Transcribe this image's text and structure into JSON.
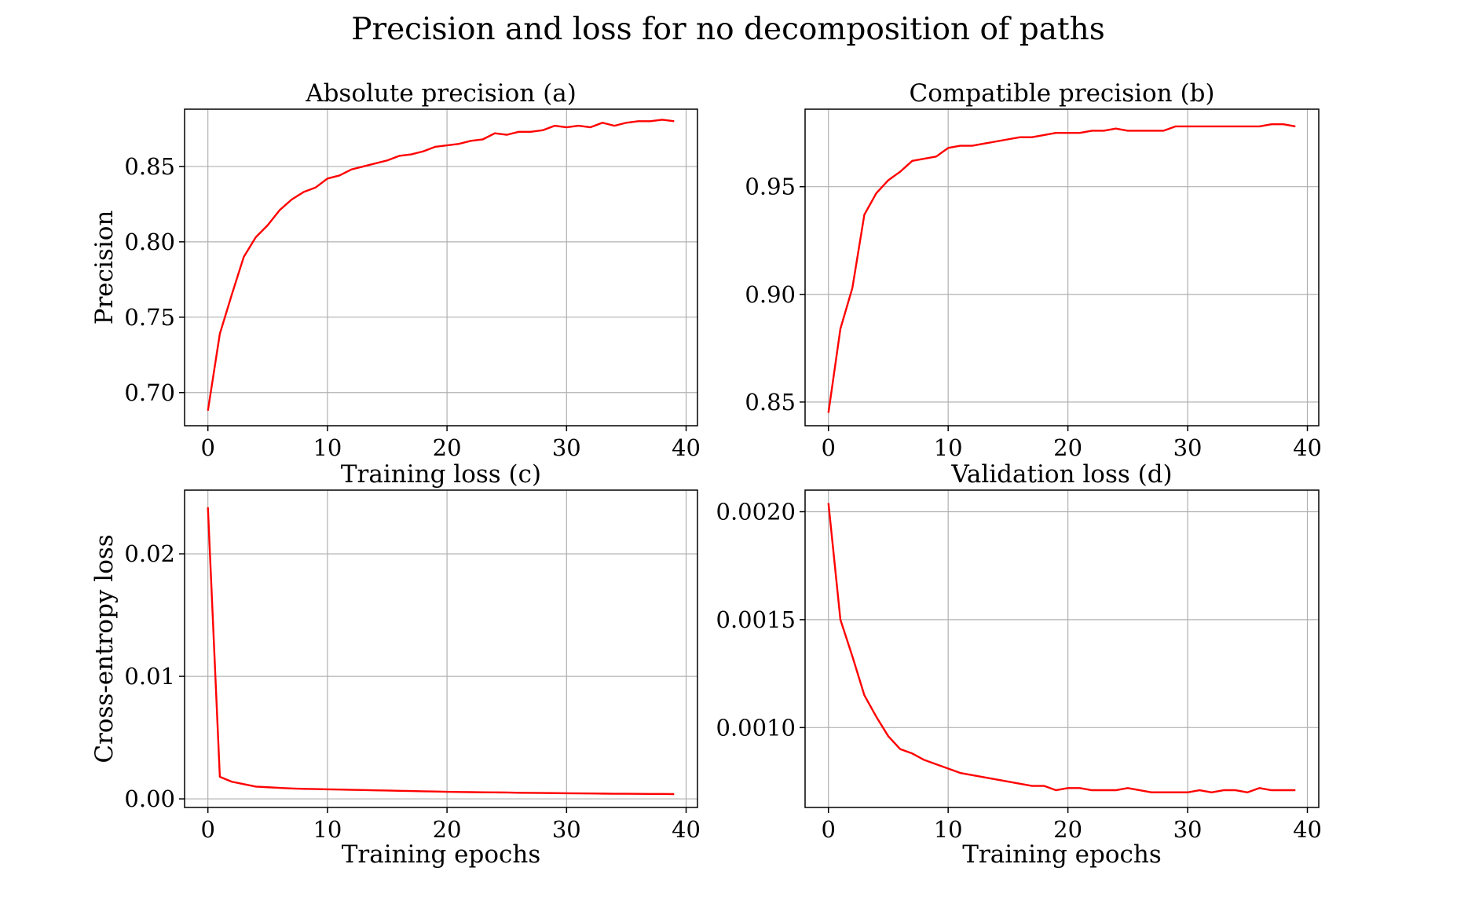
{
  "figure_title": "Precision and loss for no decomposition of paths",
  "colors": {
    "series": "#ff0000",
    "grid": "#b0b0b0",
    "frame": "#000000"
  },
  "chart_data": [
    {
      "type": "line",
      "title": "Absolute precision (a)",
      "xlabel": "",
      "ylabel": "Precision",
      "xlim": [
        -1.95,
        40.95
      ],
      "ylim": [
        0.678,
        0.888
      ],
      "xticks": [
        0,
        10,
        20,
        30,
        40
      ],
      "xtick_labels": [
        "0",
        "10",
        "20",
        "30",
        "40"
      ],
      "yticks": [
        0.7,
        0.75,
        0.8,
        0.85
      ],
      "ytick_labels": [
        "0.70",
        "0.75",
        "0.80",
        "0.85"
      ],
      "grid": true,
      "x": [
        0,
        1,
        2,
        3,
        4,
        5,
        6,
        7,
        8,
        9,
        10,
        11,
        12,
        13,
        14,
        15,
        16,
        17,
        18,
        19,
        20,
        21,
        22,
        23,
        24,
        25,
        26,
        27,
        28,
        29,
        30,
        31,
        32,
        33,
        34,
        35,
        36,
        37,
        38,
        39
      ],
      "series": [
        {
          "values": [
            0.688,
            0.739,
            0.765,
            0.79,
            0.803,
            0.811,
            0.821,
            0.828,
            0.833,
            0.836,
            0.842,
            0.844,
            0.848,
            0.85,
            0.852,
            0.854,
            0.857,
            0.858,
            0.86,
            0.863,
            0.864,
            0.865,
            0.867,
            0.868,
            0.872,
            0.871,
            0.873,
            0.873,
            0.874,
            0.877,
            0.876,
            0.877,
            0.876,
            0.879,
            0.877,
            0.879,
            0.88,
            0.88,
            0.881,
            0.88
          ]
        }
      ]
    },
    {
      "type": "line",
      "title": "Compatible precision (b)",
      "xlabel": "",
      "ylabel": "",
      "xlim": [
        -1.95,
        40.95
      ],
      "ylim": [
        0.839,
        0.986
      ],
      "xticks": [
        0,
        10,
        20,
        30,
        40
      ],
      "xtick_labels": [
        "0",
        "10",
        "20",
        "30",
        "40"
      ],
      "yticks": [
        0.85,
        0.9,
        0.95
      ],
      "ytick_labels": [
        "0.85",
        "0.90",
        "0.95"
      ],
      "grid": true,
      "x": [
        0,
        1,
        2,
        3,
        4,
        5,
        6,
        7,
        8,
        9,
        10,
        11,
        12,
        13,
        14,
        15,
        16,
        17,
        18,
        19,
        20,
        21,
        22,
        23,
        24,
        25,
        26,
        27,
        28,
        29,
        30,
        31,
        32,
        33,
        34,
        35,
        36,
        37,
        38,
        39
      ],
      "series": [
        {
          "values": [
            0.845,
            0.884,
            0.903,
            0.937,
            0.947,
            0.953,
            0.957,
            0.962,
            0.963,
            0.964,
            0.968,
            0.969,
            0.969,
            0.97,
            0.971,
            0.972,
            0.973,
            0.973,
            0.974,
            0.975,
            0.975,
            0.975,
            0.976,
            0.976,
            0.977,
            0.976,
            0.976,
            0.976,
            0.976,
            0.978,
            0.978,
            0.978,
            0.978,
            0.978,
            0.978,
            0.978,
            0.978,
            0.979,
            0.979,
            0.978
          ]
        }
      ]
    },
    {
      "type": "line",
      "title": "Training loss (c)",
      "xlabel": "Training epochs",
      "ylabel": "Cross-entropy loss",
      "xlim": [
        -1.95,
        40.95
      ],
      "ylim": [
        -0.0007,
        0.0252
      ],
      "xticks": [
        0,
        10,
        20,
        30,
        40
      ],
      "xtick_labels": [
        "0",
        "10",
        "20",
        "30",
        "40"
      ],
      "yticks": [
        0.0,
        0.01,
        0.02
      ],
      "ytick_labels": [
        "0.00",
        "0.01",
        "0.02"
      ],
      "grid": true,
      "x": [
        0,
        1,
        2,
        3,
        4,
        5,
        6,
        7,
        8,
        9,
        10,
        11,
        12,
        13,
        14,
        15,
        16,
        17,
        18,
        19,
        20,
        21,
        22,
        23,
        24,
        25,
        26,
        27,
        28,
        29,
        30,
        31,
        32,
        33,
        34,
        35,
        36,
        37,
        38,
        39
      ],
      "series": [
        {
          "values": [
            0.0238,
            0.0018,
            0.0014,
            0.0012,
            0.001,
            0.00095,
            0.0009,
            0.00085,
            0.00082,
            0.0008,
            0.00078,
            0.00076,
            0.00074,
            0.00072,
            0.0007,
            0.00068,
            0.00066,
            0.00064,
            0.00062,
            0.0006,
            0.00058,
            0.00056,
            0.00055,
            0.00054,
            0.00053,
            0.00052,
            0.0005,
            0.00049,
            0.00048,
            0.00047,
            0.00046,
            0.00045,
            0.00044,
            0.00043,
            0.00042,
            0.00042,
            0.00041,
            0.0004,
            0.0004,
            0.00039
          ]
        }
      ]
    },
    {
      "type": "line",
      "title": "Validation loss (d)",
      "xlabel": "Training epochs",
      "ylabel": "",
      "xlim": [
        -1.95,
        40.95
      ],
      "ylim": [
        0.00063,
        0.0021
      ],
      "xticks": [
        0,
        10,
        20,
        30,
        40
      ],
      "xtick_labels": [
        "0",
        "10",
        "20",
        "30",
        "40"
      ],
      "yticks": [
        0.001,
        0.0015,
        0.002
      ],
      "ytick_labels": [
        "0.0010",
        "0.0015",
        "0.0020"
      ],
      "grid": true,
      "x": [
        0,
        1,
        2,
        3,
        4,
        5,
        6,
        7,
        8,
        9,
        10,
        11,
        12,
        13,
        14,
        15,
        16,
        17,
        18,
        19,
        20,
        21,
        22,
        23,
        24,
        25,
        26,
        27,
        28,
        29,
        30,
        31,
        32,
        33,
        34,
        35,
        36,
        37,
        38,
        39
      ],
      "series": [
        {
          "values": [
            0.00204,
            0.0015,
            0.00133,
            0.00115,
            0.00105,
            0.00096,
            0.0009,
            0.00088,
            0.00085,
            0.00083,
            0.00081,
            0.00079,
            0.00078,
            0.00077,
            0.00076,
            0.00075,
            0.00074,
            0.00073,
            0.00073,
            0.00071,
            0.00072,
            0.00072,
            0.00071,
            0.00071,
            0.00071,
            0.00072,
            0.00071,
            0.0007,
            0.0007,
            0.0007,
            0.0007,
            0.00071,
            0.0007,
            0.00071,
            0.00071,
            0.0007,
            0.00072,
            0.00071,
            0.00071,
            0.00071
          ]
        }
      ]
    }
  ]
}
